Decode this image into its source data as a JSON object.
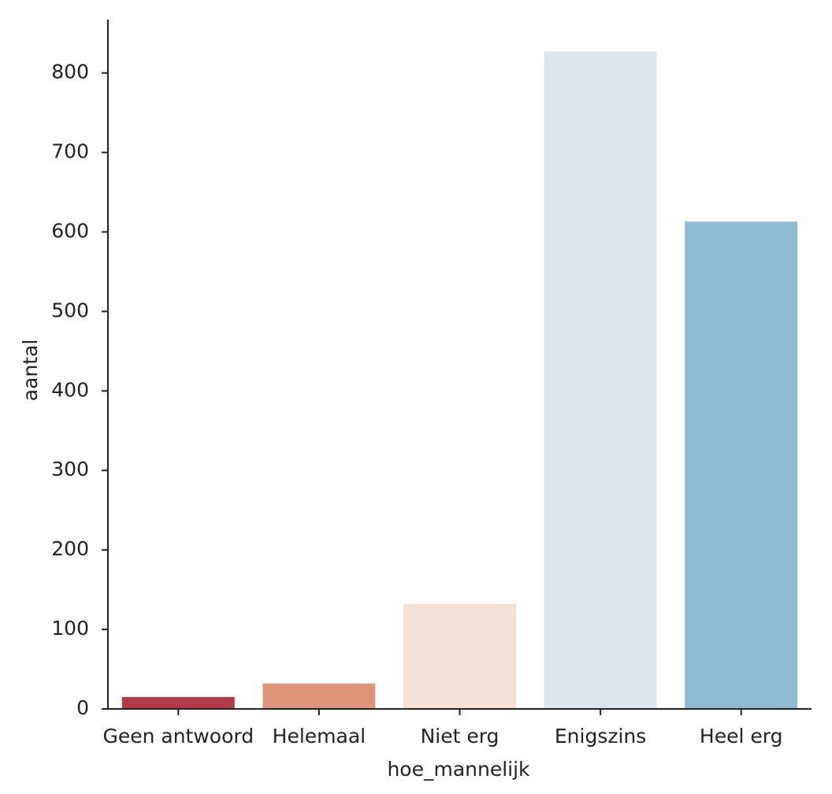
{
  "chart_data": {
    "type": "bar",
    "x_label": "hoe_mannelijk",
    "y_label": "aantal",
    "categories": [
      "Geen antwoord",
      "Helemaal",
      "Niet erg",
      "Enigszins",
      "Heel erg"
    ],
    "values": [
      15,
      32,
      132,
      827,
      613
    ],
    "colors": [
      "#b33a44",
      "#e0957a",
      "#f6e0d4",
      "#dce6ef",
      "#8fbad3"
    ],
    "ylim": [
      0,
      867
    ],
    "yticks": [
      0,
      100,
      200,
      300,
      400,
      500,
      600,
      700,
      800
    ],
    "grid": false
  }
}
